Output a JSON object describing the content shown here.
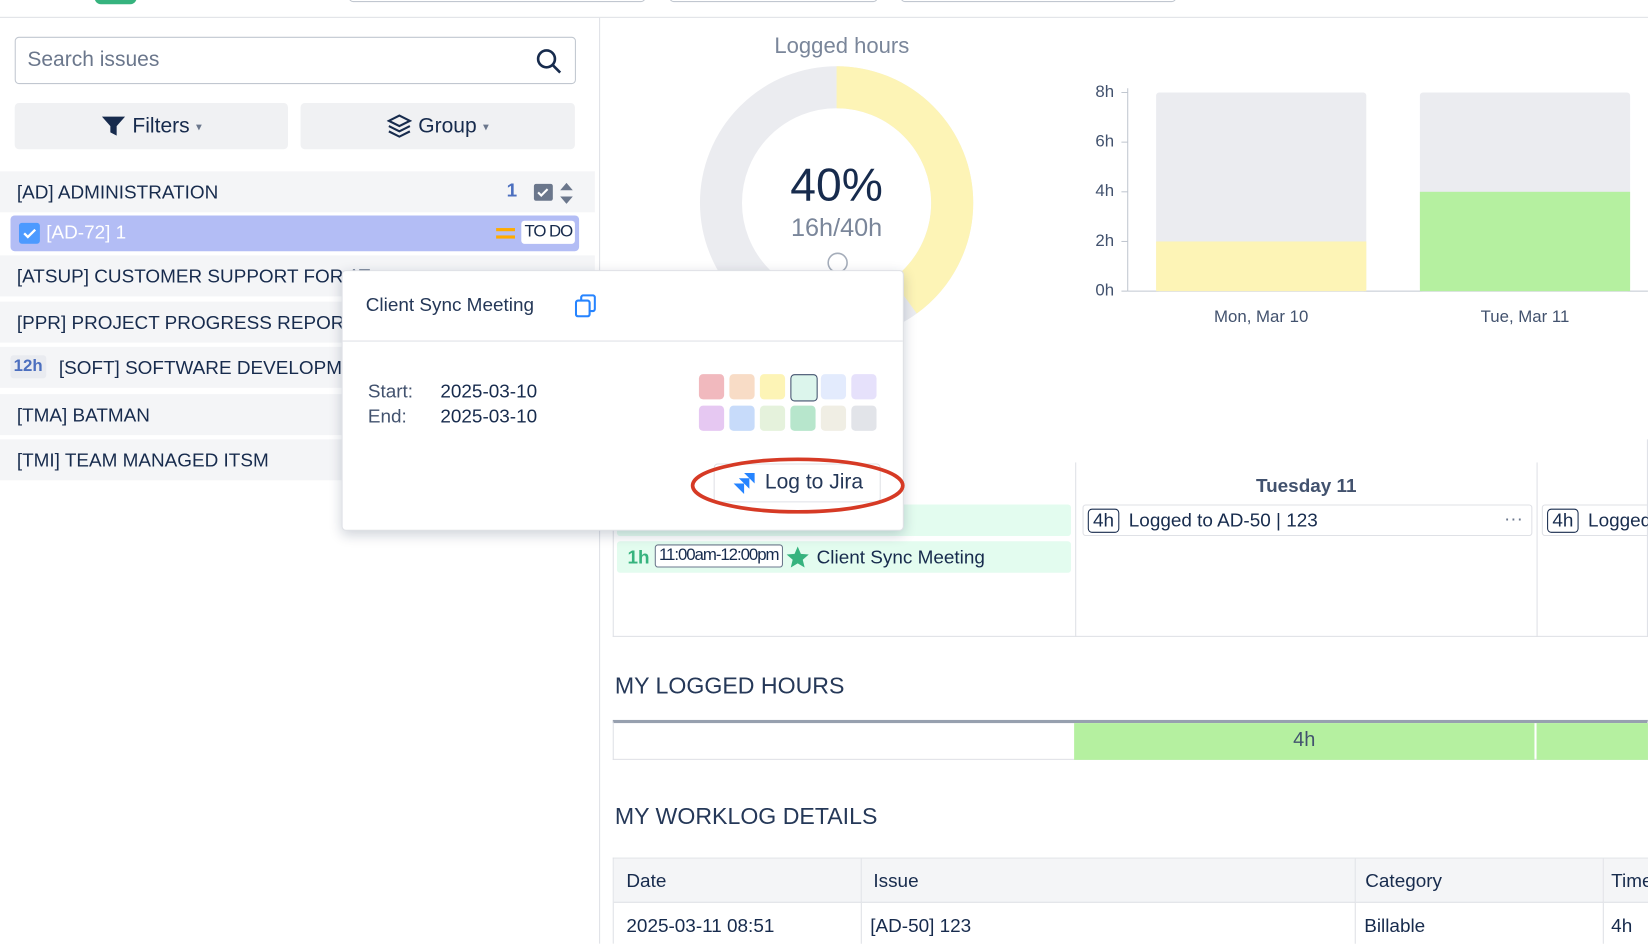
{
  "sidebar": {
    "search_placeholder": "Search issues",
    "filters": "Filters",
    "group": "Group",
    "groups": [
      {
        "label": "[AD] ADMINISTRATION",
        "count": "1"
      },
      {
        "label": "[ATSUP] CUSTOMER SUPPORT FOR AT"
      },
      {
        "label": "[PPR] PROJECT PROGRESS REPORT"
      },
      {
        "label": "[SOFT] SOFTWARE DEVELOPMENT",
        "badge": "12h"
      },
      {
        "label": "[TMA] BATMAN"
      },
      {
        "label": "[TMI] TEAM MANAGED ITSM"
      }
    ],
    "issue": {
      "label": "[AD-72] 1",
      "status": "TO DO"
    }
  },
  "donut": {
    "title": "Logged hours",
    "value": 40,
    "value_label": "40%",
    "ratio_label": "16h/40h",
    "color": "#fdf4b6",
    "track_color": "#ebecf0"
  },
  "bar_chart": {
    "type": "bar",
    "categories": [
      "Mon, Mar 10",
      "Tue, Mar 11"
    ],
    "values": [
      2,
      4
    ],
    "colors": [
      "#fdf4b6",
      "#b5f0a0"
    ],
    "capacity": [
      8,
      8
    ],
    "capacity_color": "#ebecf0",
    "ylim": [
      0,
      8
    ],
    "yticks": [
      {
        "value": 0,
        "label": "0h"
      },
      {
        "value": 2,
        "label": "2h"
      },
      {
        "value": 4,
        "label": "4h"
      },
      {
        "value": 6,
        "label": "6h"
      },
      {
        "value": 8,
        "label": "8h"
      }
    ]
  },
  "calendar": {
    "day_header": "Tuesday 11",
    "monday_event": {
      "duration": "1h",
      "time": "11:00am-12:00pm",
      "title": "Client Sync Meeting"
    },
    "tuesday_event": {
      "duration": "4h",
      "title": "Logged to AD-50 | 123",
      "more": "···"
    },
    "wednesday_event": {
      "duration": "4h",
      "title": "Logged"
    }
  },
  "logged_hours": {
    "title": "MY LOGGED HOURS",
    "tuesday": "4h"
  },
  "worklog": {
    "title": "MY WORKLOG DETAILS",
    "columns": [
      "Date",
      "Issue",
      "Category",
      "Time"
    ],
    "rows": [
      [
        "2025-03-11 08:51",
        "[AD-50] 123",
        "Billable",
        "4h"
      ]
    ]
  },
  "popup": {
    "title": "Client Sync Meeting",
    "start_label": "Start:",
    "start": "2025-03-10",
    "end_label": "End:",
    "end": "2025-03-10",
    "button": "Log to Jira"
  }
}
